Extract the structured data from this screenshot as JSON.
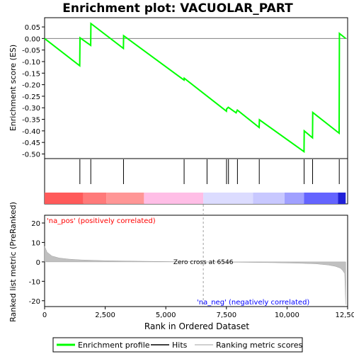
{
  "chart_data": {
    "type": "line",
    "title": "Enrichment plot: VACUOLAR_PART",
    "xlabel": "Rank in Ordered Dataset",
    "ylabel_top": "Enrichment score (ES)",
    "ylabel_bottom": "Ranked list metric (PreRanked)",
    "xlim": [
      0,
      12500
    ],
    "x_ticks": [
      0,
      2500,
      5000,
      7500,
      10000,
      12500
    ],
    "x_tick_labels": [
      "0",
      "2,500",
      "5,000",
      "7,500",
      "10,000",
      "12,500"
    ],
    "es_ylim": [
      -0.52,
      0.09
    ],
    "es_ticks": [
      0.05,
      0.0,
      -0.05,
      -0.1,
      -0.15,
      -0.2,
      -0.25,
      -0.3,
      -0.35,
      -0.4,
      -0.45,
      -0.5
    ],
    "es_tick_labels": [
      "0.05",
      "0.00",
      "-0.05",
      "-0.10",
      "-0.15",
      "-0.20",
      "-0.25",
      "-0.30",
      "-0.35",
      "-0.40",
      "-0.45",
      "-0.50"
    ],
    "metric_ylim": [
      -23,
      24
    ],
    "metric_ticks": [
      20,
      10,
      0,
      -10,
      -20
    ],
    "metric_tick_labels": [
      "20",
      "10",
      "0",
      "-10",
      "-20"
    ],
    "enrichment_profile": {
      "name": "Enrichment profile",
      "color": "#00ff00",
      "points": [
        [
          0,
          0.0
        ],
        [
          1450,
          -0.118
        ],
        [
          1460,
          0.003
        ],
        [
          1900,
          -0.03
        ],
        [
          1910,
          0.065
        ],
        [
          3250,
          -0.043
        ],
        [
          3260,
          0.012
        ],
        [
          5750,
          -0.18
        ],
        [
          5760,
          -0.172
        ],
        [
          7500,
          -0.315
        ],
        [
          7510,
          -0.305
        ],
        [
          7580,
          -0.298
        ],
        [
          7900,
          -0.322
        ],
        [
          7950,
          -0.31
        ],
        [
          8850,
          -0.385
        ],
        [
          8860,
          -0.352
        ],
        [
          10700,
          -0.49
        ],
        [
          10710,
          -0.4
        ],
        [
          11050,
          -0.43
        ],
        [
          11060,
          -0.32
        ],
        [
          12150,
          -0.41
        ],
        [
          12160,
          0.022
        ],
        [
          12420,
          0.0
        ]
      ]
    },
    "hits": {
      "name": "Hits",
      "positions": [
        1455,
        1905,
        3255,
        5755,
        6700,
        7505,
        7585,
        7955,
        8855,
        10705,
        11055,
        12155
      ]
    },
    "ranking_metric": {
      "name": "Ranking metric scores",
      "color": "#c0c0c0",
      "points": [
        [
          0,
          8.0
        ],
        [
          100,
          5.0
        ],
        [
          300,
          3.0
        ],
        [
          600,
          2.0
        ],
        [
          1000,
          1.4
        ],
        [
          1500,
          1.0
        ],
        [
          2500,
          0.6
        ],
        [
          4000,
          0.3
        ],
        [
          5500,
          0.1
        ],
        [
          6546,
          0.0
        ],
        [
          8000,
          -0.2
        ],
        [
          9500,
          -0.4
        ],
        [
          10500,
          -0.7
        ],
        [
          11200,
          -1.0
        ],
        [
          11700,
          -1.6
        ],
        [
          12000,
          -2.3
        ],
        [
          12200,
          -3.2
        ],
        [
          12300,
          -4.5
        ],
        [
          12380,
          -6.0
        ],
        [
          12420,
          -22.0
        ]
      ]
    },
    "zero_cross": {
      "rank": 6546,
      "label": "Zero cross at 6546"
    },
    "pos_label": "'na_pos' (positively correlated)",
    "neg_label": "'na_neg' (negatively correlated)",
    "pos_label_color": "#ff0000",
    "neg_label_color": "#0000ff",
    "heatmap_colors": [
      "#ff5a5a",
      "#ff7a7a",
      "#ff9696",
      "#ffbee6",
      "#dcdcff",
      "#c8c8ff",
      "#a0a0ff",
      "#6464ff",
      "#2020d8"
    ],
    "heatmap_breaks": [
      0,
      1600,
      2550,
      4100,
      6546,
      8600,
      9900,
      10700,
      12100,
      12420
    ],
    "legend": [
      {
        "label": "Enrichment profile",
        "kind": "line",
        "color": "#00ff00"
      },
      {
        "label": "Hits",
        "kind": "line",
        "color": "#000000"
      },
      {
        "label": "Ranking metric scores",
        "kind": "line",
        "color": "#c0c0c0"
      }
    ]
  }
}
